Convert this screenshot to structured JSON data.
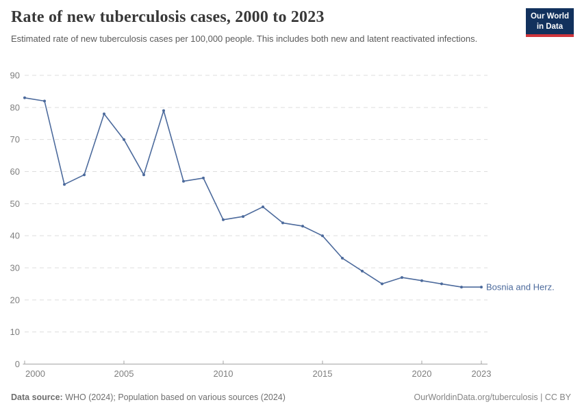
{
  "header": {
    "title": "Rate of new tuberculosis cases, 2000 to 2023",
    "subtitle": "Estimated rate of new tuberculosis cases per 100,000 people. This includes both new and latent reactivated infections.",
    "logo": {
      "line1": "Our World",
      "line2": "in Data"
    }
  },
  "chart_data": {
    "type": "line",
    "title": "Rate of new tuberculosis cases, 2000 to 2023",
    "xlabel": "",
    "ylabel": "",
    "xlim": [
      2000,
      2023
    ],
    "ylim": [
      0,
      90
    ],
    "x_ticks": [
      2000,
      2005,
      2010,
      2015,
      2020,
      2023
    ],
    "y_ticks": [
      0,
      10,
      20,
      30,
      40,
      50,
      60,
      70,
      80,
      90
    ],
    "grid": "horizontal-dashed",
    "legend_position": "end-of-line-label",
    "x": [
      2000,
      2001,
      2002,
      2003,
      2004,
      2005,
      2006,
      2007,
      2008,
      2009,
      2010,
      2011,
      2012,
      2013,
      2014,
      2015,
      2016,
      2017,
      2018,
      2019,
      2020,
      2021,
      2022,
      2023
    ],
    "series": [
      {
        "name": "Bosnia and Herz.",
        "color": "#4c6a9c",
        "values": [
          83,
          82,
          56,
          59,
          78,
          70,
          59,
          79,
          57,
          58,
          45,
          46,
          49,
          44,
          43,
          40,
          33,
          29,
          25,
          27,
          26,
          25,
          24,
          24
        ]
      }
    ]
  },
  "footer": {
    "datasource_label": "Data source:",
    "datasource_text": "WHO (2024); Population based on various sources (2024)",
    "credit": "OurWorldinData.org/tuberculosis | CC BY"
  },
  "colors": {
    "line": "#4c6a9c",
    "series_label": "#4c6a9c",
    "grid": "#dddddd",
    "axis": "#a3a3a3",
    "tick_text": "#7e7e7e",
    "logo_bg": "#12315d",
    "logo_red": "#d0353c"
  }
}
